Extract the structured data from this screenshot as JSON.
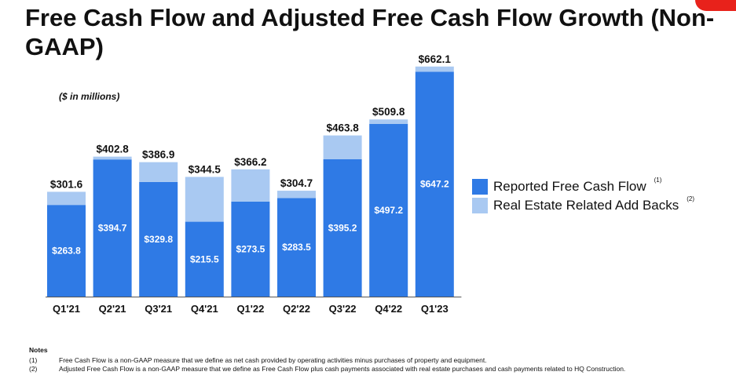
{
  "title": "Free Cash Flow and Adjusted Free Cash Flow Growth (Non-GAAP)",
  "unit_note": "($ in millions)",
  "colors": {
    "reported": "#2f7ae5",
    "addback": "#a9c9f2",
    "accent": "#e8221b"
  },
  "chart_data": {
    "type": "bar",
    "stacked": true,
    "categories": [
      "Q1'21",
      "Q2'21",
      "Q3'21",
      "Q4'21",
      "Q1'22",
      "Q2'22",
      "Q3'22",
      "Q4'22",
      "Q1'23"
    ],
    "series": [
      {
        "name": "Reported Free Cash Flow",
        "values": [
          263.8,
          394.7,
          329.8,
          215.5,
          273.5,
          283.5,
          395.2,
          497.2,
          647.2
        ],
        "labels": [
          "$263.8",
          "$394.7",
          "$329.8",
          "$215.5",
          "$273.5",
          "$283.5",
          "$395.2",
          "$497.2",
          "$647.2"
        ]
      },
      {
        "name": "Real Estate Related Add Backs",
        "values": [
          37.8,
          8.1,
          57.1,
          129.0,
          92.7,
          21.2,
          68.6,
          12.6,
          14.9
        ]
      }
    ],
    "totals": [
      301.6,
      402.8,
      386.9,
      344.5,
      366.2,
      304.7,
      463.8,
      509.8,
      662.1
    ],
    "total_labels": [
      "$301.6",
      "$402.8",
      "$386.9",
      "$344.5",
      "$366.2",
      "$304.7",
      "$463.8",
      "$509.8",
      "$662.1"
    ],
    "ylim": [
      0,
      700
    ],
    "grid": false,
    "legend_position": "right"
  },
  "legend": [
    {
      "label": "Reported Free Cash Flow",
      "note": "(1)"
    },
    {
      "label": "Real Estate Related Add Backs",
      "note": "(2)"
    }
  ],
  "notes": {
    "title": "Notes",
    "items": [
      {
        "marker": "(1)",
        "text": "Free Cash Flow is a non-GAAP measure that we define as net cash provided by operating activities minus purchases of property and equipment."
      },
      {
        "marker": "(2)",
        "text": "Adjusted Free Cash Flow is a non-GAAP measure that we define as Free Cash Flow plus cash payments associated with real estate purchases and cash payments related to HQ Construction."
      }
    ]
  }
}
